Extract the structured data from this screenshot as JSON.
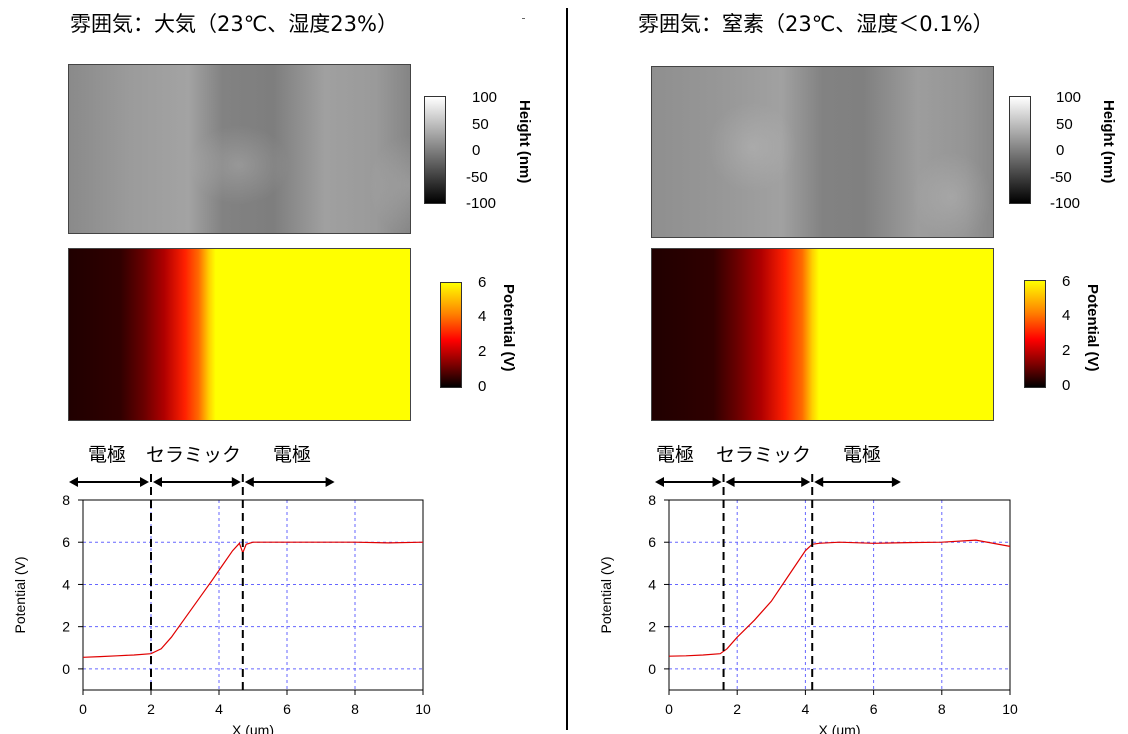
{
  "colors": {
    "line": "#e00000",
    "grid": "#6666ff",
    "potential_low": "#200000",
    "potential_high": "#ffff00"
  },
  "panels": [
    {
      "title": "雰囲気：大気（23℃、湿度23%）",
      "height_colorbar": {
        "label": "Height (nm)",
        "ticks": [
          "100",
          "50",
          "0",
          "-50",
          "-100"
        ]
      },
      "potential_colorbar": {
        "label": "Potential (V)",
        "ticks": [
          "6",
          "4",
          "2",
          "0"
        ]
      },
      "regions": [
        "電極",
        "セラミック",
        "電極"
      ],
      "boundaries_x": [
        2.0,
        4.7
      ]
    },
    {
      "title": "雰囲気：窒素（23℃、湿度＜0.1%）",
      "height_colorbar": {
        "label": "Height (nm)",
        "ticks": [
          "100",
          "50",
          "0",
          "-50",
          "-100"
        ]
      },
      "potential_colorbar": {
        "label": "Potential (V)",
        "ticks": [
          "6",
          "4",
          "2",
          "0"
        ]
      },
      "regions": [
        "電極",
        "セラミック",
        "電極"
      ],
      "boundaries_x": [
        1.6,
        4.2
      ]
    }
  ],
  "chart_data": [
    {
      "type": "line",
      "xlabel": "X (um)",
      "ylabel": "Potential (V)",
      "xlim": [
        0,
        10
      ],
      "ylim": [
        -1,
        8
      ],
      "xticks": [
        "0",
        "2",
        "4",
        "6",
        "8",
        "10"
      ],
      "yticks": [
        "8",
        "6",
        "4",
        "2",
        "0"
      ],
      "grid": true,
      "series": [
        {
          "x": [
            0,
            0.5,
            1.0,
            1.5,
            2.0,
            2.3,
            2.6,
            3.0,
            3.4,
            3.8,
            4.1,
            4.4,
            4.6,
            4.7,
            4.8,
            5.0,
            5.5,
            6.0,
            7.0,
            8.0,
            9.0,
            10.0
          ],
          "y": [
            0.55,
            0.58,
            0.62,
            0.66,
            0.72,
            0.95,
            1.5,
            2.4,
            3.3,
            4.2,
            4.9,
            5.6,
            5.95,
            5.5,
            5.9,
            6.0,
            6.0,
            6.0,
            6.0,
            6.0,
            5.97,
            6.0
          ]
        }
      ]
    },
    {
      "type": "line",
      "xlabel": "X (um)",
      "ylabel": "Potential (V)",
      "xlim": [
        0,
        10
      ],
      "ylim": [
        -1,
        8
      ],
      "xticks": [
        "0",
        "2",
        "4",
        "6",
        "8",
        "10"
      ],
      "yticks": [
        "8",
        "6",
        "4",
        "2",
        "0"
      ],
      "grid": true,
      "series": [
        {
          "x": [
            0,
            0.5,
            1.0,
            1.5,
            1.7,
            2.0,
            2.5,
            3.0,
            3.5,
            4.0,
            4.2,
            4.4,
            5.0,
            6.0,
            7.0,
            8.0,
            9.0,
            10.0
          ],
          "y": [
            0.6,
            0.62,
            0.66,
            0.72,
            0.95,
            1.5,
            2.3,
            3.2,
            4.4,
            5.6,
            5.9,
            5.95,
            6.0,
            5.95,
            5.98,
            6.0,
            6.1,
            5.8
          ]
        }
      ]
    }
  ]
}
